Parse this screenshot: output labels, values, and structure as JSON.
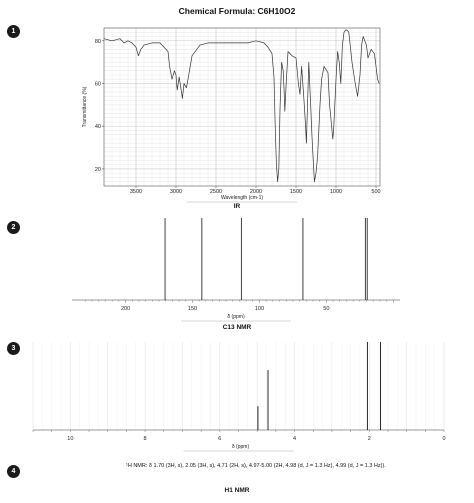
{
  "header": {
    "title": "Chemical Formula: C6H10O2"
  },
  "panels": [
    {
      "badge": "1",
      "label": "IR"
    },
    {
      "badge": "2",
      "label": "C13 NMR"
    },
    {
      "badge": "3",
      "label": ""
    },
    {
      "badge": "4",
      "label": "H1 NMR"
    }
  ],
  "h1_nmr_text": "¹H NMR: δ 1.70 (3H, s), 2.05 (3H, s), 4.71 (2H, s), 4.97-5.00 (2H, 4.98 (d, J = 1.3 Hz), 4.99 (d, J = 1.3 Hz)).",
  "chart_data": [
    {
      "type": "line",
      "name": "IR",
      "xlabel": "Wavelength (cm-1)",
      "ylabel": "Transmittance (%)",
      "xlim": [
        3900,
        450
      ],
      "ylim": [
        12,
        86
      ],
      "x_ticks": [
        3500,
        3000,
        2500,
        2000,
        1500,
        1000,
        500
      ],
      "y_ticks": [
        20,
        40,
        60,
        80
      ],
      "grid": true,
      "x": [
        3900,
        3800,
        3700,
        3650,
        3600,
        3550,
        3500,
        3470,
        3440,
        3400,
        3300,
        3200,
        3100,
        3080,
        3050,
        3020,
        3000,
        2985,
        2960,
        2940,
        2920,
        2900,
        2870,
        2850,
        2800,
        2700,
        2600,
        2500,
        2400,
        2300,
        2200,
        2100,
        2000,
        1900,
        1850,
        1800,
        1775,
        1760,
        1745,
        1730,
        1715,
        1700,
        1680,
        1660,
        1650,
        1640,
        1620,
        1600,
        1550,
        1500,
        1470,
        1450,
        1430,
        1400,
        1380,
        1370,
        1360,
        1340,
        1300,
        1270,
        1250,
        1230,
        1200,
        1180,
        1150,
        1100,
        1080,
        1060,
        1040,
        1030,
        1000,
        980,
        960,
        940,
        920,
        900,
        880,
        860,
        840,
        800,
        760,
        730,
        700,
        680,
        660,
        640,
        620,
        600,
        560,
        520,
        500,
        480,
        460
      ],
      "y": [
        81,
        80,
        81,
        79,
        80,
        79,
        77,
        73,
        76,
        78,
        79,
        79,
        75,
        68,
        62,
        66,
        64,
        57,
        63,
        58,
        53,
        60,
        58,
        62,
        73,
        78,
        79,
        79,
        79,
        79,
        79,
        79,
        80,
        79,
        77,
        74,
        63,
        40,
        22,
        14,
        20,
        48,
        70,
        66,
        58,
        47,
        62,
        75,
        73,
        72,
        60,
        55,
        68,
        52,
        40,
        32,
        45,
        70,
        35,
        14,
        18,
        26,
        50,
        62,
        68,
        65,
        50,
        42,
        34,
        38,
        62,
        75,
        70,
        60,
        78,
        84,
        85,
        85,
        84,
        70,
        60,
        54,
        64,
        78,
        82,
        80,
        78,
        72,
        76,
        74,
        68,
        62,
        60
      ]
    },
    {
      "type": "bar",
      "name": "C13 NMR",
      "xlabel": "δ (ppm)",
      "xlim": [
        240,
        -5
      ],
      "x_ticks": [
        200,
        150,
        100,
        50
      ],
      "peaks": [
        {
          "x": 170.5,
          "y": 1.0
        },
        {
          "x": 143.0,
          "y": 1.0
        },
        {
          "x": 113.5,
          "y": 1.0
        },
        {
          "x": 67.5,
          "y": 1.0
        },
        {
          "x": 20.9,
          "y": 1.0
        },
        {
          "x": 19.5,
          "y": 1.0
        }
      ]
    },
    {
      "type": "bar",
      "name": "H1 NMR",
      "xlabel": "δ (ppm)",
      "xlim": [
        11,
        0
      ],
      "x_ticks": [
        10,
        8,
        6,
        4,
        2,
        0
      ],
      "peaks": [
        {
          "x": 4.98,
          "y": 0.27
        },
        {
          "x": 4.71,
          "y": 0.68
        },
        {
          "x": 2.05,
          "y": 1.0
        },
        {
          "x": 1.7,
          "y": 1.0
        }
      ]
    }
  ]
}
